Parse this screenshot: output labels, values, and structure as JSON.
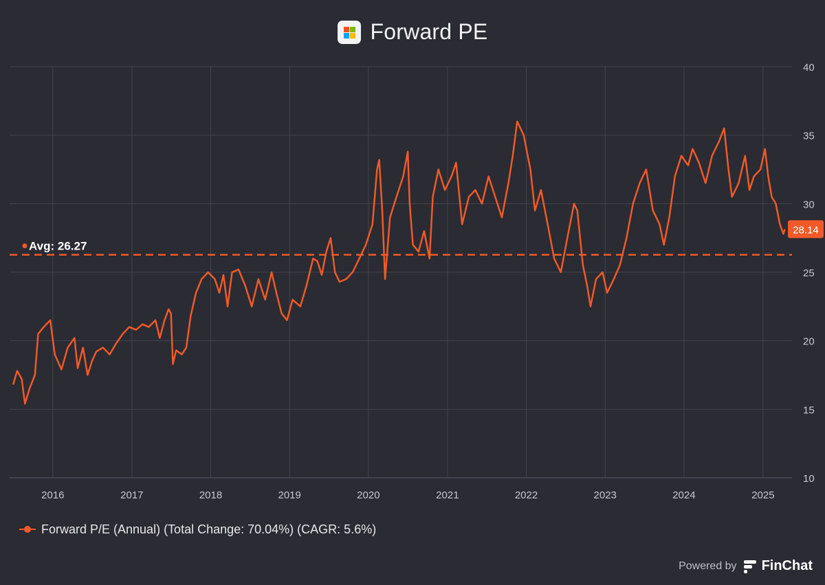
{
  "header": {
    "title": "Forward PE",
    "logo_icon": "microsoft-logo-icon"
  },
  "legend": {
    "label": "Forward P/E (Annual) (Total Change: 70.04%) (CAGR: 5.6%)"
  },
  "branding": {
    "powered_by": "Powered by",
    "name": "FinChat"
  },
  "colors": {
    "background": "#2a2b33",
    "series": "#f05a28",
    "grid": "#43444d",
    "axis_text": "#c8c9ce"
  },
  "chart_data": {
    "type": "line",
    "title": "Forward PE",
    "ylim": [
      10,
      40
    ],
    "y_ticks": [
      "10",
      "15",
      "20",
      "25",
      "30",
      "35",
      "40"
    ],
    "x_ticks": [
      "2016",
      "2017",
      "2018",
      "2019",
      "2020",
      "2021",
      "2022",
      "2023",
      "2024",
      "2025"
    ],
    "xlim": [
      "2015-06",
      "2025-05"
    ],
    "grid": true,
    "legend_placement": "bottom-left",
    "average": {
      "label": "Avg: 26.27",
      "value": 26.27
    },
    "last_value": {
      "label": "28.14",
      "value": 28.14
    },
    "series": [
      {
        "name": "Forward P/E (Annual) (Total Change: 70.04%) (CAGR: 5.6%)",
        "points": [
          [
            "2015-07-01",
            16.8
          ],
          [
            "2015-07-20",
            17.8
          ],
          [
            "2015-08-10",
            17.2
          ],
          [
            "2015-08-25",
            15.4
          ],
          [
            "2015-09-15",
            16.5
          ],
          [
            "2015-10-10",
            17.5
          ],
          [
            "2015-10-25",
            20.5
          ],
          [
            "2015-11-20",
            21.0
          ],
          [
            "2015-12-20",
            21.5
          ],
          [
            "2016-01-10",
            19.0
          ],
          [
            "2016-02-10",
            17.9
          ],
          [
            "2016-03-10",
            19.5
          ],
          [
            "2016-04-10",
            20.2
          ],
          [
            "2016-04-25",
            18.0
          ],
          [
            "2016-05-20",
            19.5
          ],
          [
            "2016-06-10",
            17.5
          ],
          [
            "2016-06-30",
            18.5
          ],
          [
            "2016-07-20",
            19.2
          ],
          [
            "2016-08-20",
            19.5
          ],
          [
            "2016-09-20",
            19.0
          ],
          [
            "2016-10-20",
            19.8
          ],
          [
            "2016-11-20",
            20.5
          ],
          [
            "2016-12-20",
            21.0
          ],
          [
            "2017-01-20",
            20.8
          ],
          [
            "2017-02-20",
            21.2
          ],
          [
            "2017-03-20",
            21.0
          ],
          [
            "2017-04-20",
            21.5
          ],
          [
            "2017-05-10",
            20.2
          ],
          [
            "2017-06-01",
            21.5
          ],
          [
            "2017-06-20",
            22.3
          ],
          [
            "2017-07-01",
            22.0
          ],
          [
            "2017-07-10",
            18.3
          ],
          [
            "2017-07-25",
            19.3
          ],
          [
            "2017-08-20",
            19.0
          ],
          [
            "2017-09-10",
            19.5
          ],
          [
            "2017-09-30",
            21.8
          ],
          [
            "2017-10-25",
            23.5
          ],
          [
            "2017-11-20",
            24.5
          ],
          [
            "2017-12-20",
            25.0
          ],
          [
            "2018-01-20",
            24.5
          ],
          [
            "2018-02-10",
            23.5
          ],
          [
            "2018-03-01",
            24.8
          ],
          [
            "2018-03-20",
            22.5
          ],
          [
            "2018-04-10",
            25.0
          ],
          [
            "2018-05-10",
            25.2
          ],
          [
            "2018-06-10",
            24.0
          ],
          [
            "2018-07-10",
            22.5
          ],
          [
            "2018-08-10",
            24.5
          ],
          [
            "2018-09-10",
            23.0
          ],
          [
            "2018-10-10",
            25.0
          ],
          [
            "2018-11-01",
            23.5
          ],
          [
            "2018-11-25",
            22.0
          ],
          [
            "2018-12-20",
            21.5
          ],
          [
            "2019-01-15",
            23.0
          ],
          [
            "2019-02-20",
            22.5
          ],
          [
            "2019-03-20",
            24.0
          ],
          [
            "2019-04-20",
            26.0
          ],
          [
            "2019-05-10",
            25.8
          ],
          [
            "2019-05-30",
            24.8
          ],
          [
            "2019-06-20",
            26.5
          ],
          [
            "2019-07-10",
            27.5
          ],
          [
            "2019-07-30",
            25.0
          ],
          [
            "2019-08-20",
            24.3
          ],
          [
            "2019-09-20",
            24.5
          ],
          [
            "2019-10-20",
            25.0
          ],
          [
            "2019-11-20",
            26.0
          ],
          [
            "2019-12-20",
            27.0
          ],
          [
            "2020-01-20",
            28.5
          ],
          [
            "2020-02-10",
            32.5
          ],
          [
            "2020-02-20",
            33.2
          ],
          [
            "2020-03-05",
            29.5
          ],
          [
            "2020-03-18",
            24.5
          ],
          [
            "2020-04-10",
            29.0
          ],
          [
            "2020-05-10",
            30.5
          ],
          [
            "2020-06-10",
            32.0
          ],
          [
            "2020-07-01",
            33.8
          ],
          [
            "2020-07-10",
            30.0
          ],
          [
            "2020-07-25",
            27.0
          ],
          [
            "2020-08-20",
            26.5
          ],
          [
            "2020-09-15",
            28.0
          ],
          [
            "2020-10-10",
            26.0
          ],
          [
            "2020-10-25",
            30.5
          ],
          [
            "2020-11-20",
            32.5
          ],
          [
            "2020-12-20",
            31.0
          ],
          [
            "2021-01-20",
            32.0
          ],
          [
            "2021-02-10",
            33.0
          ],
          [
            "2021-03-10",
            28.5
          ],
          [
            "2021-04-10",
            30.5
          ],
          [
            "2021-05-10",
            31.0
          ],
          [
            "2021-06-10",
            30.0
          ],
          [
            "2021-07-10",
            32.0
          ],
          [
            "2021-08-10",
            30.5
          ],
          [
            "2021-09-10",
            29.0
          ],
          [
            "2021-10-10",
            31.5
          ],
          [
            "2021-10-30",
            33.5
          ],
          [
            "2021-11-20",
            36.0
          ],
          [
            "2021-12-20",
            35.0
          ],
          [
            "2022-01-20",
            32.5
          ],
          [
            "2022-02-10",
            29.5
          ],
          [
            "2022-03-10",
            31.0
          ],
          [
            "2022-04-10",
            28.5
          ],
          [
            "2022-05-10",
            26.0
          ],
          [
            "2022-06-10",
            25.0
          ],
          [
            "2022-07-10",
            27.5
          ],
          [
            "2022-08-10",
            30.0
          ],
          [
            "2022-08-25",
            29.5
          ],
          [
            "2022-09-20",
            25.5
          ],
          [
            "2022-10-10",
            24.0
          ],
          [
            "2022-10-25",
            22.5
          ],
          [
            "2022-11-20",
            24.5
          ],
          [
            "2022-12-20",
            25.0
          ],
          [
            "2023-01-10",
            23.5
          ],
          [
            "2023-02-10",
            24.5
          ],
          [
            "2023-03-10",
            25.5
          ],
          [
            "2023-04-10",
            27.5
          ],
          [
            "2023-05-10",
            30.0
          ],
          [
            "2023-06-10",
            31.5
          ],
          [
            "2023-07-10",
            32.5
          ],
          [
            "2023-08-10",
            29.5
          ],
          [
            "2023-09-10",
            28.5
          ],
          [
            "2023-09-30",
            27.0
          ],
          [
            "2023-10-25",
            29.0
          ],
          [
            "2023-11-20",
            32.0
          ],
          [
            "2023-12-20",
            33.5
          ],
          [
            "2024-01-20",
            32.8
          ],
          [
            "2024-02-10",
            34.0
          ],
          [
            "2024-03-10",
            33.0
          ],
          [
            "2024-04-10",
            31.5
          ],
          [
            "2024-05-10",
            33.5
          ],
          [
            "2024-06-10",
            34.5
          ],
          [
            "2024-07-05",
            35.5
          ],
          [
            "2024-07-25",
            32.5
          ],
          [
            "2024-08-10",
            30.5
          ],
          [
            "2024-09-10",
            31.5
          ],
          [
            "2024-10-10",
            33.5
          ],
          [
            "2024-10-30",
            31.0
          ],
          [
            "2024-11-20",
            32.0
          ],
          [
            "2024-12-20",
            32.5
          ],
          [
            "2025-01-10",
            34.0
          ],
          [
            "2025-01-25",
            32.0
          ],
          [
            "2025-02-10",
            30.5
          ],
          [
            "2025-03-01",
            30.0
          ],
          [
            "2025-03-20",
            28.5
          ],
          [
            "2025-04-05",
            27.8
          ],
          [
            "2025-04-12",
            28.14
          ]
        ]
      }
    ]
  }
}
